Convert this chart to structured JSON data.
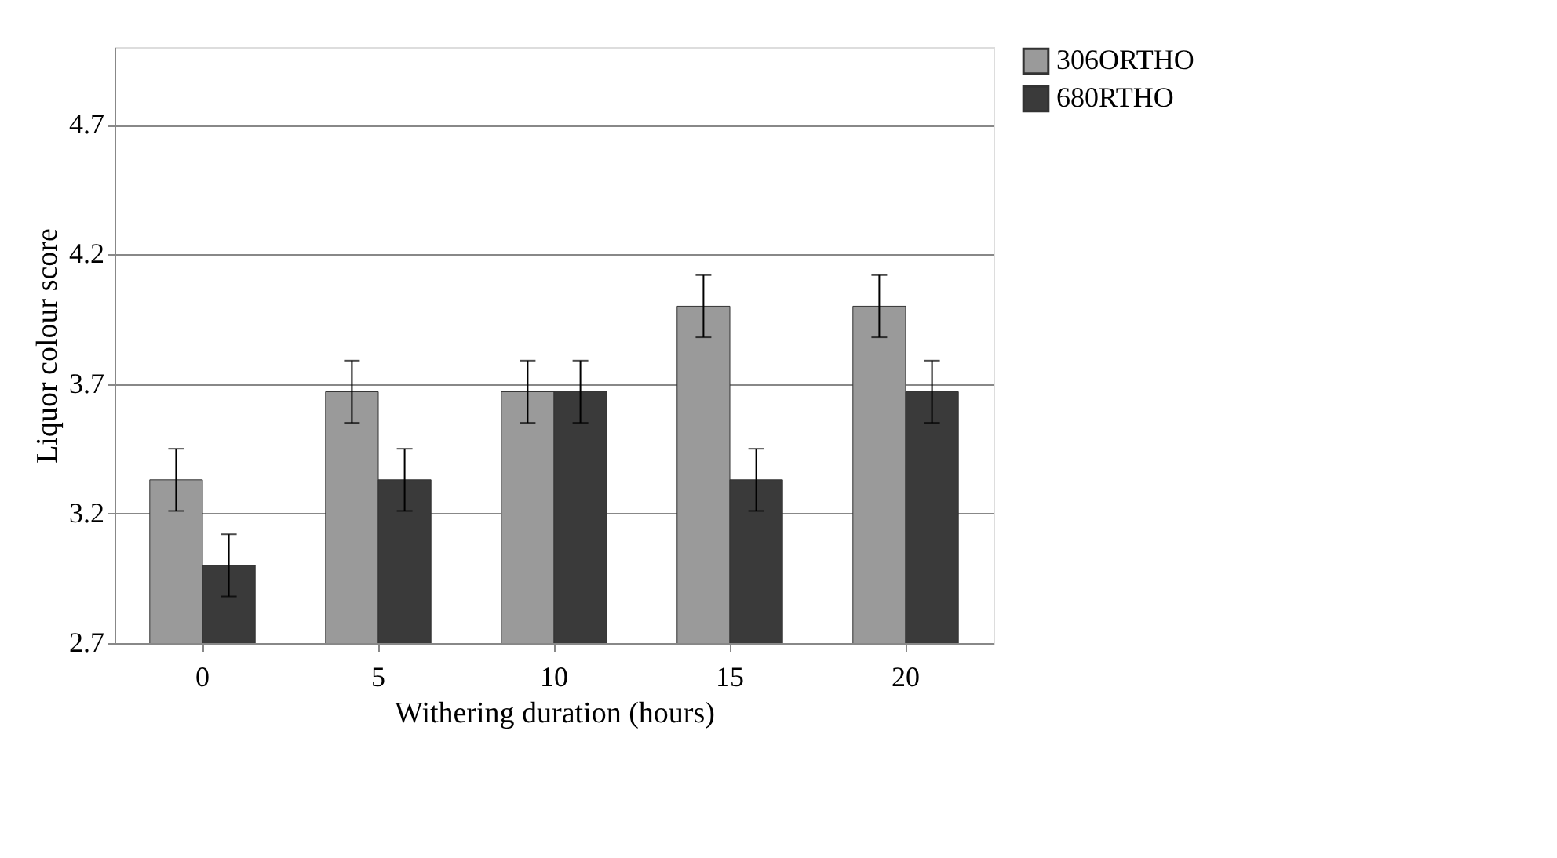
{
  "chart_data": {
    "type": "bar",
    "xlabel": "Withering duration (hours)",
    "ylabel": "Liquor colour score",
    "categories": [
      "0",
      "5",
      "10",
      "15",
      "20"
    ],
    "series": [
      {
        "name": "306ORTHO",
        "color": "#9a9a9a",
        "values": [
          3.33,
          3.67,
          3.67,
          4.0,
          4.0
        ],
        "errors": [
          0.12,
          0.12,
          0.12,
          0.12,
          0.12
        ]
      },
      {
        "name": "680RTHO",
        "color": "#3a3a3a",
        "values": [
          3.0,
          3.33,
          3.67,
          3.33,
          3.67
        ],
        "errors": [
          0.12,
          0.12,
          0.12,
          0.12,
          0.12
        ]
      }
    ],
    "ylim": [
      2.7,
      5.0
    ],
    "yticks": [
      2.7,
      3.2,
      3.7,
      4.2,
      4.7
    ],
    "grid": "y",
    "legend": "right"
  }
}
